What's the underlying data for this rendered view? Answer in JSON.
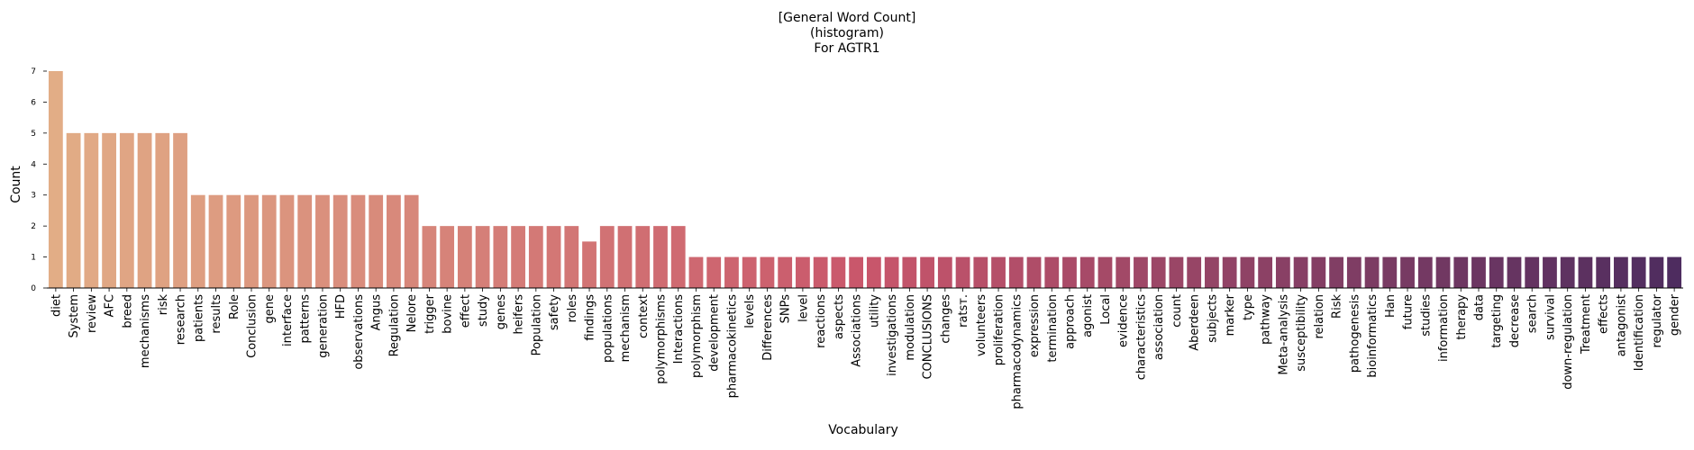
{
  "chart_data": {
    "type": "bar",
    "title": [
      "[General Word Count]",
      "(histogram)",
      "For AGTR1"
    ],
    "xlabel": "Vocabulary",
    "ylabel": "Count",
    "ylim": [
      0,
      7
    ],
    "yticks": [
      0,
      1,
      2,
      3,
      4,
      5,
      6,
      7
    ],
    "grid": false,
    "legend": "none",
    "palette": {
      "start": "#e2ad86",
      "mid": "#c9566b",
      "end": "#4e2c5f"
    },
    "categories": [
      "diet",
      "System",
      "review",
      "AFC",
      "breed",
      "mechanisms",
      "risk",
      "research",
      "patients",
      "results",
      "Role",
      "Conclusion",
      "gene",
      "interface",
      "patterns",
      "generation",
      "HFD",
      "observations",
      "Angus",
      "Regulation",
      "Nelore",
      "trigger",
      "bovine",
      "effect",
      "study",
      "genes",
      "heifers",
      "Population",
      "safety",
      "roles",
      "findings",
      "populations",
      "mechanism",
      "context",
      "polymorphisms",
      "Interactions",
      "polymorphism",
      "development",
      "pharmacokinetics",
      "levels",
      "Differences",
      "SNPs",
      "level",
      "reactions",
      "aspects",
      "Associations",
      "utility",
      "investigations",
      "modulation",
      "CONCLUSIONS",
      "changes",
      "ratsт.",
      "volunteers",
      "proliferation",
      "pharmacodynamics",
      "expression",
      "termination",
      "approach",
      "agonist",
      "Local",
      "evidence",
      "characteristics",
      "association",
      "count",
      "Aberdeen",
      "subjects",
      "marker",
      "type",
      "pathway",
      "Meta-analysis",
      "susceptibility",
      "relation",
      "Risk",
      "pathogenesis",
      "bioinformatics",
      "Han",
      "future",
      "studies",
      "information",
      "therapy",
      "data",
      "targeting",
      "decrease",
      "search",
      "survival",
      "down-regulation",
      "Treatment",
      "effects",
      "antagonist",
      "Identification",
      "regulator",
      "gender"
    ],
    "values": [
      7,
      5,
      5,
      5,
      5,
      5,
      5,
      5,
      3,
      3,
      3,
      3,
      3,
      3,
      3,
      3,
      3,
      3,
      3,
      3,
      3,
      2,
      2,
      2,
      2,
      2,
      2,
      2,
      2,
      2,
      1.5,
      2,
      2,
      2,
      2,
      2,
      1,
      1,
      1,
      1,
      1,
      1,
      1,
      1,
      1,
      1,
      1,
      1,
      1,
      1,
      1,
      1,
      1,
      1,
      1,
      1,
      1,
      1,
      1,
      1,
      1,
      1,
      1,
      1,
      1,
      1,
      1,
      1,
      1,
      1,
      1,
      1,
      1,
      1,
      1,
      1,
      1,
      1,
      1,
      1,
      1,
      1,
      1,
      1,
      1,
      1,
      1,
      1,
      1,
      1,
      1,
      1
    ]
  }
}
